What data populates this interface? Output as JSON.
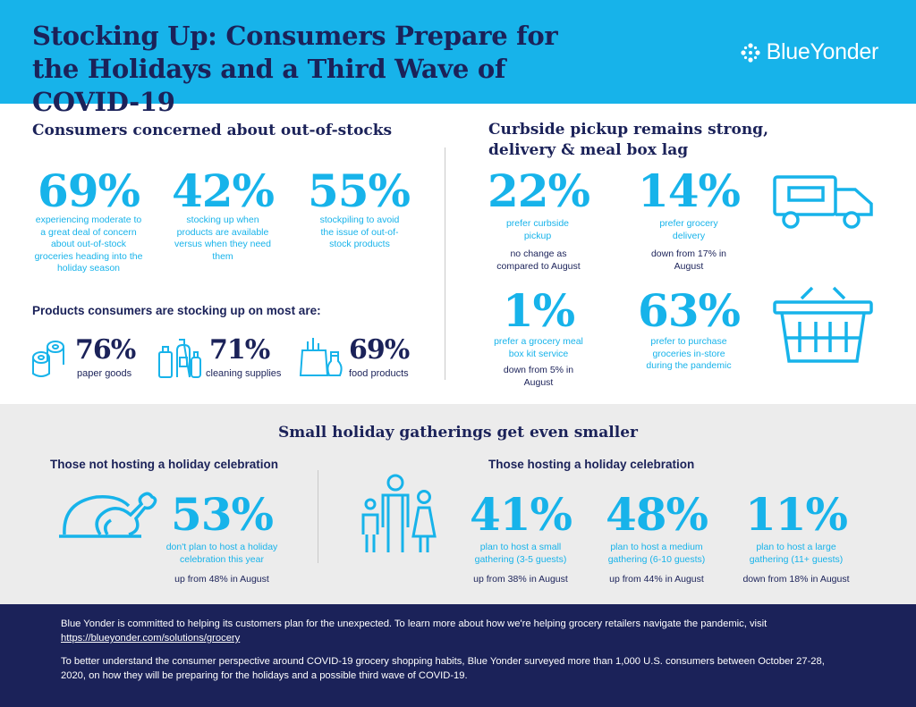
{
  "header": {
    "title": "Stocking Up: Consumers Prepare for the Holidays and a Third Wave of COVID-19",
    "brand": "BlueYonder"
  },
  "out_of_stocks": {
    "heading": "Consumers concerned about out-of-stocks",
    "stats": [
      {
        "value": "69%",
        "caption": "experiencing moderate to a great deal of concern about out-of-stock groceries heading into the holiday season"
      },
      {
        "value": "42%",
        "caption": "stocking up when products are available versus when they need them"
      },
      {
        "value": "55%",
        "caption": "stockpiling to avoid the issue of out-of-stock products"
      }
    ],
    "products_heading": "Products consumers are stocking up on most are:",
    "products": [
      {
        "value": "76%",
        "label": "paper goods"
      },
      {
        "value": "71%",
        "label": "cleaning supplies"
      },
      {
        "value": "69%",
        "label": "food products"
      }
    ]
  },
  "curbside": {
    "heading": "Curbside pickup remains strong, delivery & meal box lag",
    "stats": [
      {
        "value": "22%",
        "caption": "prefer curbside pickup",
        "note": "no change as compared to August"
      },
      {
        "value": "14%",
        "caption": "prefer grocery delivery",
        "note": "down from 17% in August"
      },
      {
        "value": "1%",
        "caption": "prefer a grocery meal box kit service",
        "note": "down from 5% in August"
      },
      {
        "value": "63%",
        "caption": "prefer to purchase groceries in-store during the pandemic",
        "note": ""
      }
    ]
  },
  "gatherings": {
    "heading": "Small holiday gatherings get even smaller",
    "not_hosting": {
      "heading": "Those not hosting a holiday celebration",
      "value": "53%",
      "caption": "don't plan to host a holiday celebration this year",
      "note": "up from 48% in August"
    },
    "hosting": {
      "heading": "Those hosting a holiday celebration",
      "stats": [
        {
          "value": "41%",
          "caption": "plan to host a small gathering (3-5 guests)",
          "note": "up from 38% in August"
        },
        {
          "value": "48%",
          "caption": "plan to host a medium gathering (6-10 guests)",
          "note": "up from 44% in August"
        },
        {
          "value": "11%",
          "caption": "plan to host a large gathering (11+ guests)",
          "note": "down from 18% in August"
        }
      ]
    }
  },
  "footer": {
    "line1": "Blue Yonder is committed to helping its customers plan for the unexpected. To learn more about how we're helping grocery retailers navigate the pandemic, visit",
    "link": "https://blueyonder.com/solutions/grocery",
    "line2": "To better understand the consumer perspective around COVID-19 grocery shopping habits, Blue Yonder surveyed more than 1,000 U.S. consumers between October 27-28, 2020, on how they will be preparing for the holidays and a possible third wave of COVID-19."
  },
  "colors": {
    "accent": "#17b3ea",
    "navy": "#1b2259",
    "band": "#ececec"
  }
}
